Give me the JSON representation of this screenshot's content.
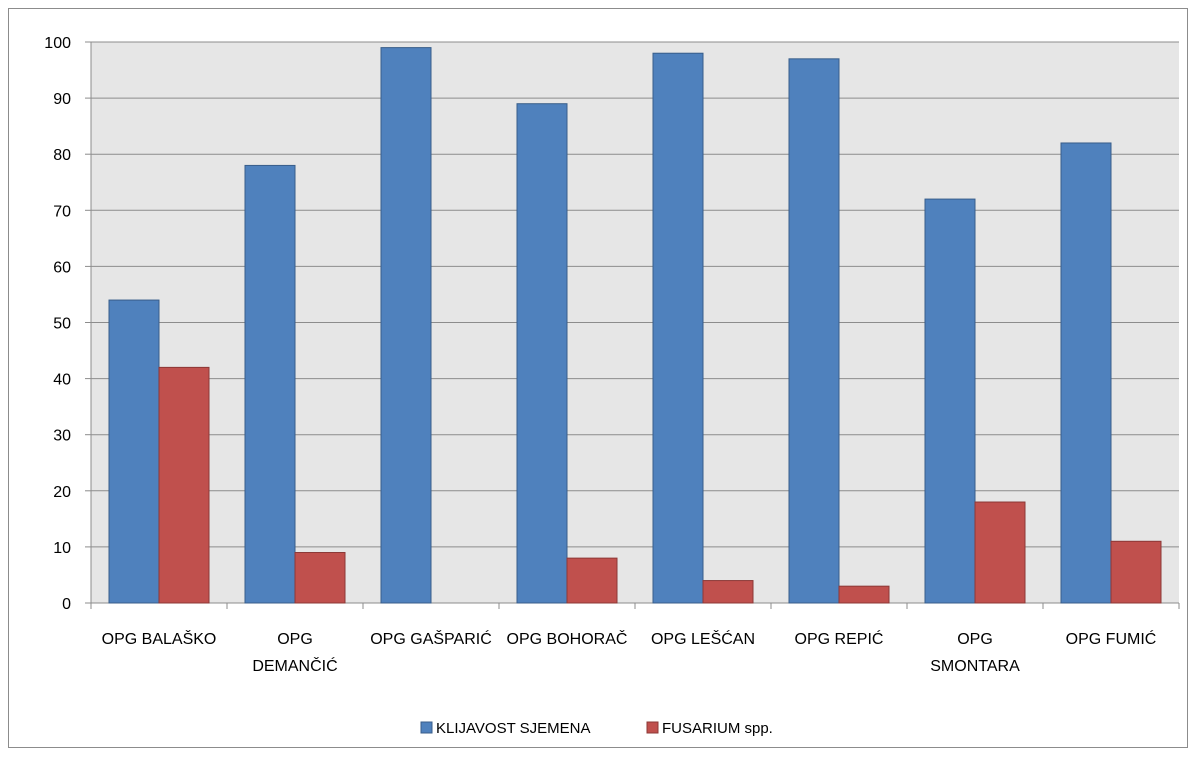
{
  "chart_data": {
    "type": "bar",
    "categories": [
      [
        "OPG BALAŠKO"
      ],
      [
        "OPG",
        "DEMANČIĆ"
      ],
      [
        "OPG GAŠPARIĆ"
      ],
      [
        "OPG BOHORAČ"
      ],
      [
        "OPG LEŠĆAN"
      ],
      [
        "OPG REPIĆ"
      ],
      [
        "OPG",
        "SMONTARA"
      ],
      [
        "OPG FUMIĆ"
      ]
    ],
    "series": [
      {
        "name": "KLIJAVOST SJEMENA",
        "color": "#4f81bd",
        "border": "#385d8a",
        "values": [
          54,
          78,
          99,
          89,
          98,
          97,
          72,
          82
        ]
      },
      {
        "name": "FUSARIUM spp.",
        "color": "#c0504d",
        "border": "#8c3836",
        "values": [
          42,
          9,
          0,
          8,
          4,
          3,
          18,
          11
        ]
      }
    ],
    "ylim": [
      0,
      100
    ],
    "yticks": [
      "0",
      "10",
      "20",
      "30",
      "40",
      "50",
      "60",
      "70",
      "80",
      "90",
      "100"
    ],
    "grid": true,
    "plot_background": "#e6e6e6",
    "legend_position": "bottom",
    "title": "",
    "xlabel": "",
    "ylabel": ""
  }
}
